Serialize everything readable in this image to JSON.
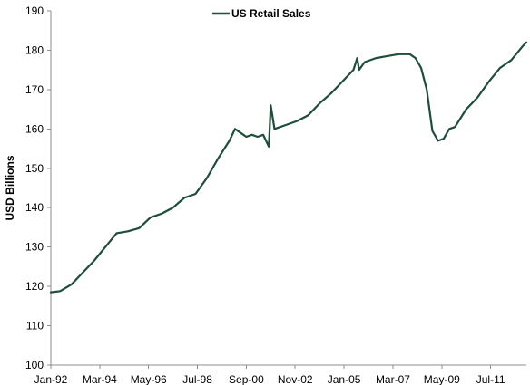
{
  "chart_data": {
    "type": "line",
    "title": "",
    "xlabel": "",
    "ylabel": "USD Billions",
    "ylim": [
      100,
      190
    ],
    "yticks": [
      100,
      110,
      120,
      130,
      140,
      150,
      160,
      170,
      180,
      190
    ],
    "xticks": [
      "Jan-92",
      "Mar-94",
      "May-96",
      "Jul-98",
      "Sep-00",
      "Nov-02",
      "Jan-05",
      "Mar-07",
      "May-09",
      "Jul-11"
    ],
    "xlim": [
      "1992-01",
      "2013-02"
    ],
    "grid": false,
    "legend": "top-center",
    "line_color": "#1e4d3a",
    "series": [
      {
        "name": "US Retail Sales",
        "x": [
          "1992-01",
          "1992-06",
          "1992-12",
          "1993-06",
          "1993-12",
          "1994-06",
          "1994-12",
          "1995-06",
          "1995-12",
          "1996-06",
          "1996-12",
          "1997-06",
          "1997-12",
          "1998-06",
          "1998-12",
          "1999-06",
          "1999-12",
          "2000-03",
          "2000-06",
          "2000-09",
          "2000-12",
          "2001-03",
          "2001-06",
          "2001-09",
          "2001-10",
          "2001-12",
          "2002-06",
          "2002-12",
          "2003-06",
          "2003-12",
          "2004-06",
          "2004-12",
          "2005-06",
          "2005-08",
          "2005-09",
          "2005-12",
          "2006-06",
          "2006-12",
          "2007-06",
          "2007-12",
          "2008-03",
          "2008-06",
          "2008-09",
          "2008-12",
          "2009-03",
          "2009-06",
          "2009-09",
          "2009-12",
          "2010-06",
          "2010-12",
          "2011-06",
          "2011-12",
          "2012-06",
          "2012-12",
          "2013-02"
        ],
        "values": [
          118.5,
          118.8,
          120.5,
          123.5,
          126.5,
          130.0,
          133.5,
          134.0,
          134.8,
          137.5,
          138.5,
          140.0,
          142.5,
          143.5,
          147.5,
          152.5,
          157.0,
          160.0,
          159.0,
          158.0,
          158.5,
          158.0,
          158.5,
          155.5,
          166.0,
          160.0,
          161.0,
          162.0,
          163.5,
          166.5,
          169.0,
          172.0,
          175.0,
          178.0,
          175.0,
          177.0,
          178.0,
          178.5,
          179.0,
          179.0,
          178.0,
          175.5,
          170.0,
          159.5,
          157.0,
          157.5,
          160.0,
          160.5,
          165.0,
          168.0,
          172.0,
          175.5,
          177.5,
          181.0,
          182.0
        ]
      }
    ]
  }
}
